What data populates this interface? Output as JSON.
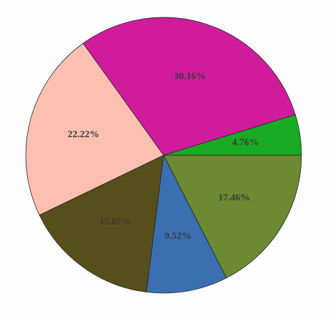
{
  "chart_data": {
    "type": "pie",
    "categories": [
      null,
      null,
      null,
      null,
      null,
      null
    ],
    "values": [
      4.76,
      30.16,
      22.22,
      15.87,
      9.52,
      17.46
    ],
    "value_labels": [
      "4.76%",
      "30.16%",
      "22.22%",
      "15.87%",
      "9.52%",
      "17.46%"
    ],
    "colors": [
      "#1aab24",
      "#d01c9c",
      "#fcc0b2",
      "#574f1b",
      "#3b6fb2",
      "#6b8a31"
    ]
  }
}
